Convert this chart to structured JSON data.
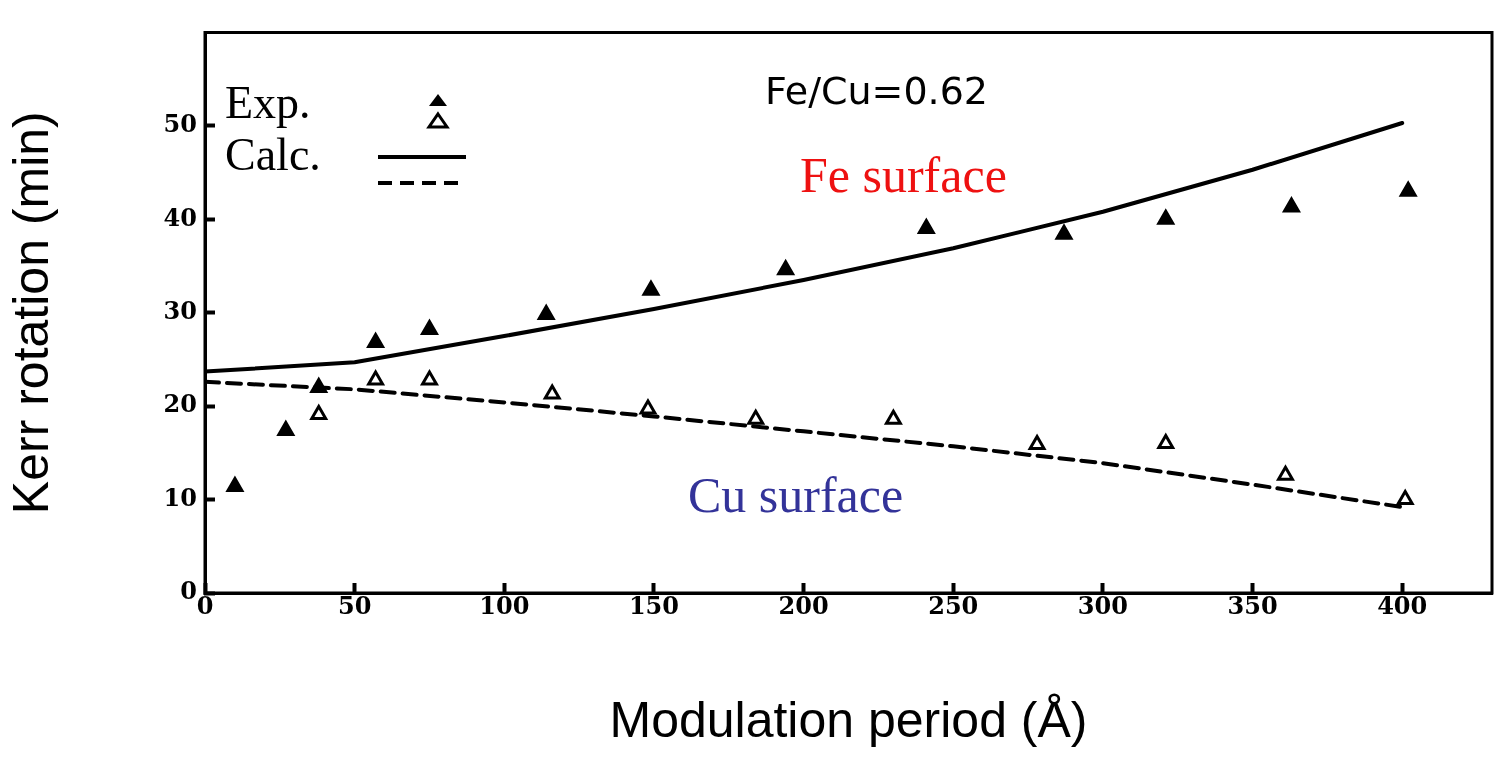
{
  "chart_data": {
    "type": "scatter",
    "xlabel": "Modulation period (Å)",
    "ylabel": "Kerr rotation (min)",
    "xlim": [
      0,
      430
    ],
    "xticks": [
      0,
      50,
      100,
      150,
      200,
      250,
      300,
      350,
      400
    ],
    "ylim": [
      0,
      60
    ],
    "yticks": [
      0,
      10,
      20,
      30,
      40,
      50
    ],
    "grid": false,
    "marker": "triangle",
    "series": [
      {
        "color": "#000000",
        "x": [
          10,
          27,
          38,
          57,
          75,
          114,
          149,
          194,
          241,
          287,
          321,
          363,
          402
        ],
        "values": [
          11.4,
          17.4,
          22,
          26.8,
          28.2,
          29.8,
          32.4,
          34.6,
          39,
          38.4,
          40,
          41.3,
          43
        ]
      },
      {
        "color": "#ffffff",
        "x": [
          38,
          57,
          75,
          116,
          148,
          184,
          230,
          278,
          321,
          361,
          401
        ],
        "values": [
          19.1,
          22.8,
          22.8,
          21.3,
          19.7,
          18.6,
          18.6,
          15.9,
          16,
          12.6,
          10
        ]
      },
      {
        "type": "line",
        "color": "#000000",
        "marker": "none",
        "line_style": "solid",
        "x": [
          0,
          50,
          100,
          150,
          200,
          250,
          300,
          350,
          400
        ],
        "values": [
          23.7,
          24.7,
          27.5,
          30.4,
          33.5,
          36.9,
          40.8,
          45.3,
          50.3
        ]
      },
      {
        "type": "line",
        "color": "#000000",
        "marker": "none",
        "line_style": "dashed",
        "x": [
          0,
          50,
          100,
          150,
          200,
          250,
          300,
          350,
          400
        ],
        "values": [
          22.6,
          21.8,
          20.4,
          18.9,
          17.3,
          15.7,
          13.9,
          11.6,
          9.2
        ]
      }
    ],
    "annotations": [
      "Exp.",
      "Calc.",
      "Fe/Cu=0.62",
      "Fe surface",
      "Cu surface"
    ]
  }
}
